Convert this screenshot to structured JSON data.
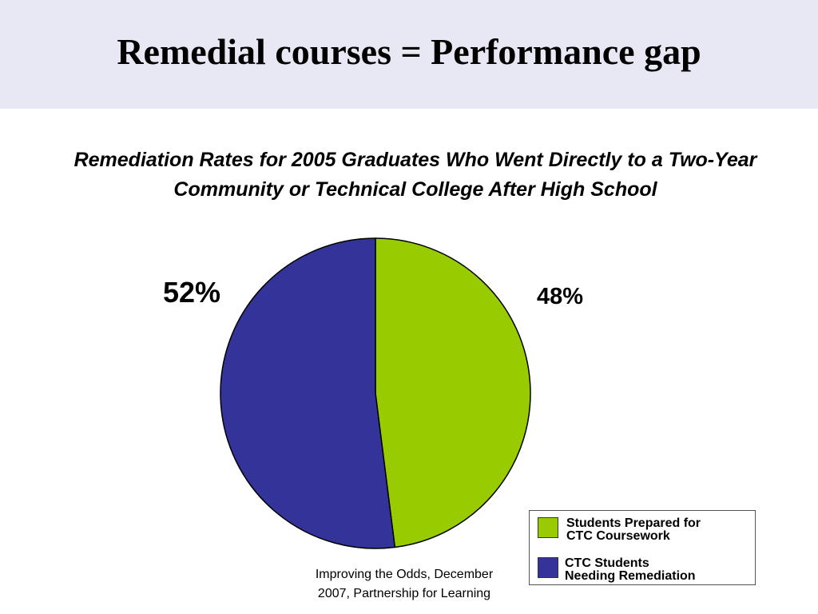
{
  "slide": {
    "title": "Remedial courses = Performance gap"
  },
  "source": {
    "text": "Improving the Odds, December\n2007, Partnership for Learning"
  },
  "chart_data": {
    "type": "pie",
    "title": "Remediation Rates for 2005 Graduates Who Went Directly to a Two-Year Community or Technical College After High School",
    "slices": [
      {
        "label": "Students Prepared for\nCTC Coursework",
        "value": 48,
        "value_label": "48%",
        "color": "#99cc00"
      },
      {
        "label": "CTC Students\nNeeding Remediation",
        "value": 52,
        "value_label": "52%",
        "color": "#333399"
      }
    ],
    "start_angle_deg": 0,
    "direction": "clockwise",
    "legend": "bottom-right"
  }
}
